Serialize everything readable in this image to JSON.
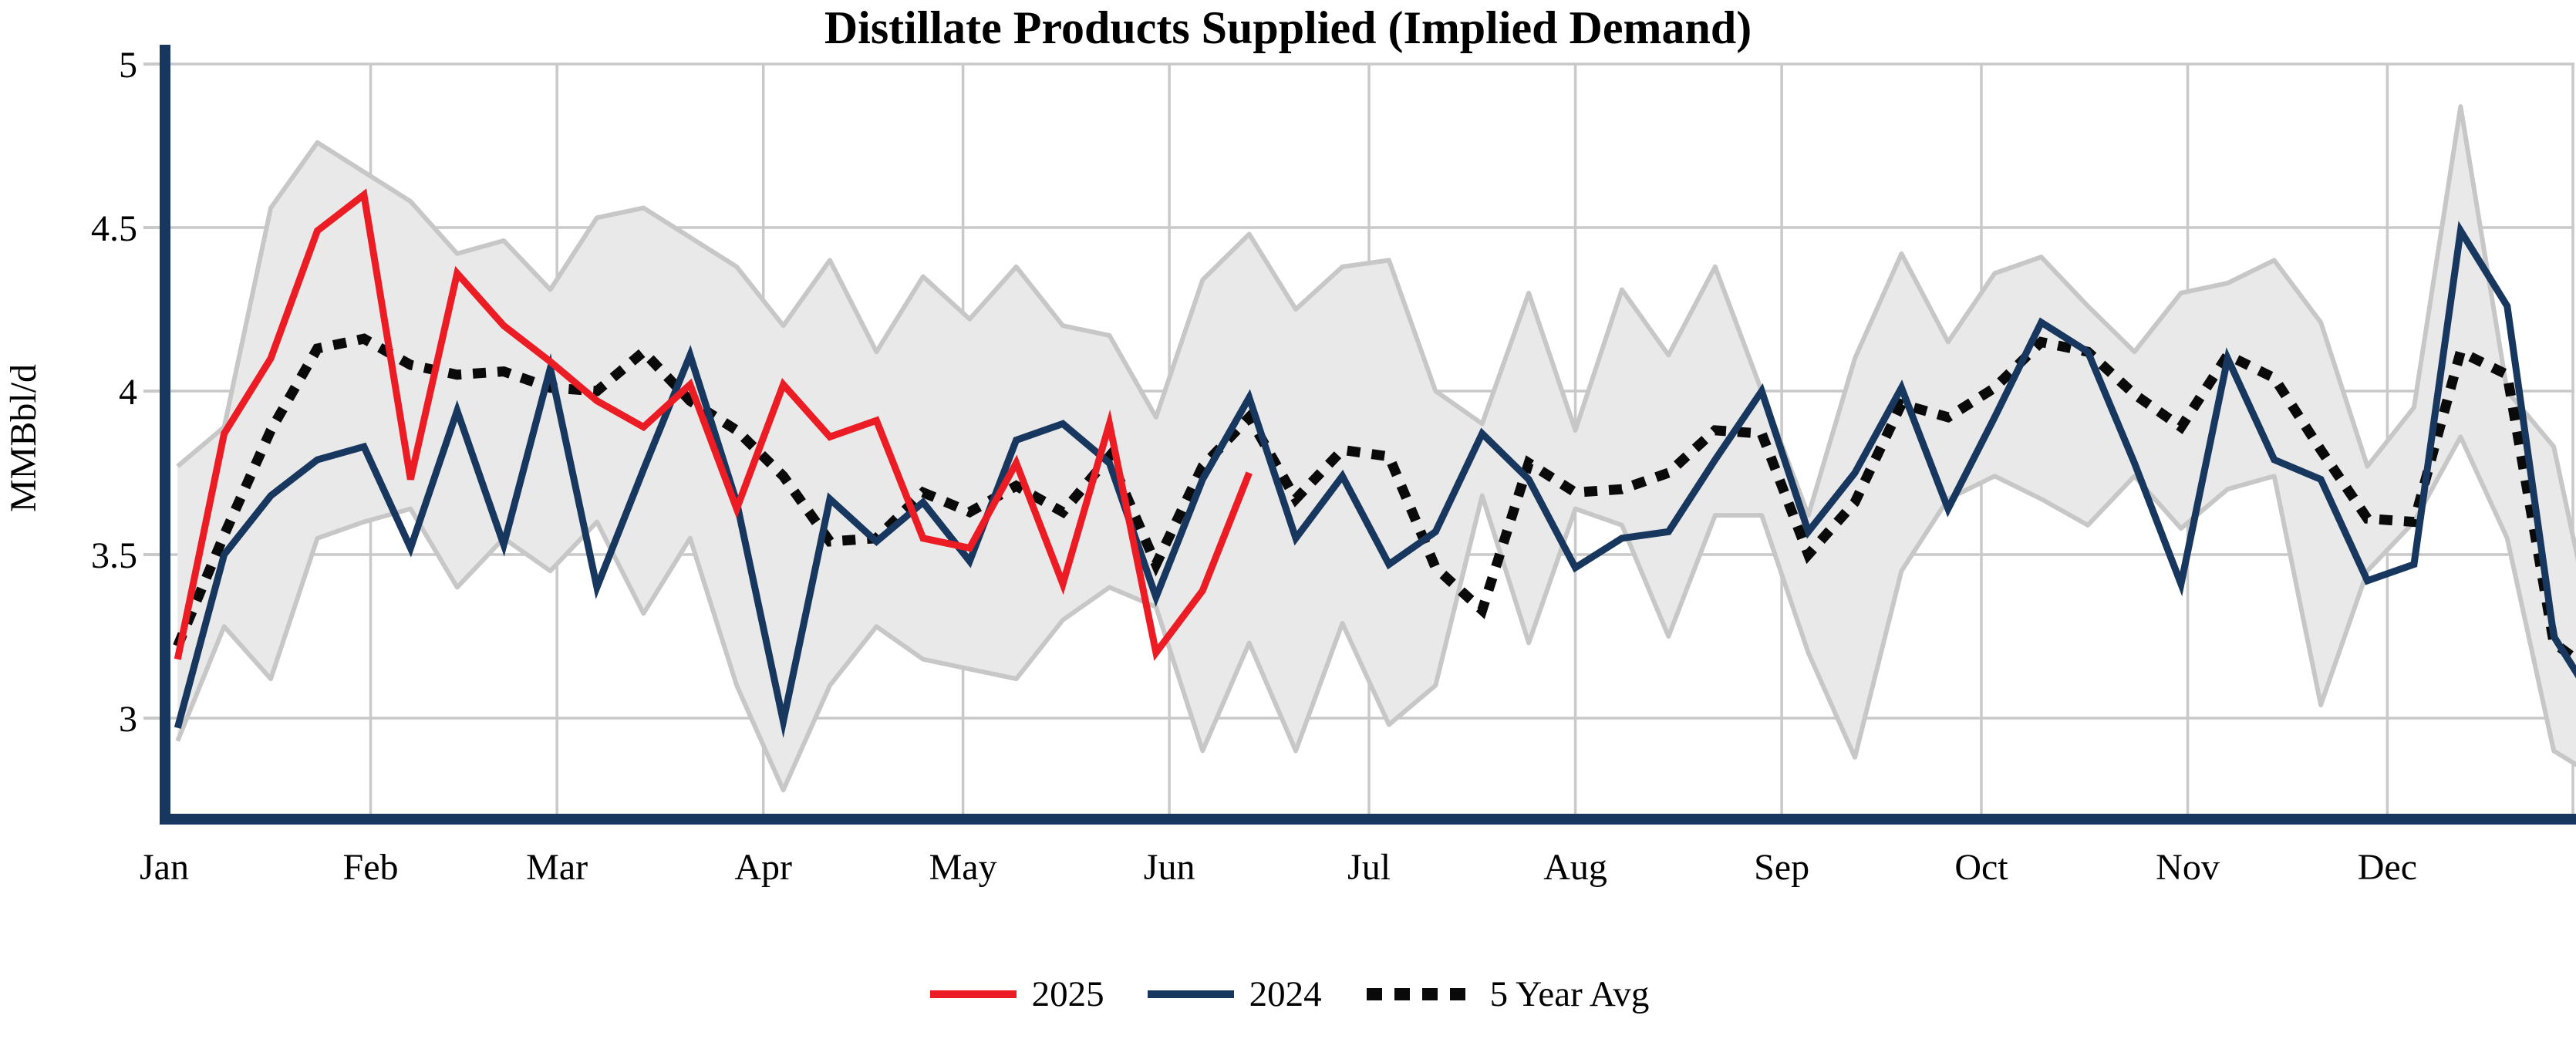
{
  "title": "Distillate Products Supplied (Implied Demand)",
  "y_axis": {
    "label": "MMBbl/d",
    "tick_labels": [
      "5",
      "4.5",
      "4",
      "3.5",
      "3"
    ],
    "tick_values": [
      5,
      4.5,
      4,
      3.5,
      3
    ]
  },
  "x_axis": {
    "months": [
      {
        "label": "Jan",
        "doy": 1
      },
      {
        "label": "Feb",
        "doy": 32
      },
      {
        "label": "Mar",
        "doy": 60
      },
      {
        "label": "Apr",
        "doy": 91
      },
      {
        "label": "May",
        "doy": 121
      },
      {
        "label": "Jun",
        "doy": 152
      },
      {
        "label": "Jul",
        "doy": 182
      },
      {
        "label": "Aug",
        "doy": 213
      },
      {
        "label": "Sep",
        "doy": 244
      },
      {
        "label": "Oct",
        "doy": 274
      },
      {
        "label": "Nov",
        "doy": 305
      },
      {
        "label": "Dec",
        "doy": 335
      }
    ]
  },
  "legend": [
    {
      "label": "2025",
      "color": "#ec1c24",
      "style": "solid"
    },
    {
      "label": "2024",
      "color": "#17375e",
      "style": "solid"
    },
    {
      "label": "5 Year Avg",
      "color": "#0a0a0a",
      "style": "dotted"
    }
  ],
  "colors": {
    "red_2025": "#ec1c24",
    "navy_2024": "#17375e",
    "avg_dotted": "#0a0a0a",
    "band_fill": "#e9e9e9",
    "band_edge": "#c7c7c7",
    "gridline": "#c9c9c9",
    "axis": "#17375e"
  },
  "chart_data": {
    "type": "line",
    "title": "Distillate Products Supplied (Implied Demand)",
    "ylabel": "MMBbl/d",
    "xlabel": "",
    "ylim": [
      2.7,
      5.05
    ],
    "yticks": [
      3,
      3.5,
      4,
      4.5,
      5
    ],
    "grid": true,
    "legend_position": "bottom",
    "x_weeks_day_of_year": [
      3,
      10,
      17,
      24,
      31,
      38,
      45,
      52,
      59,
      66,
      73,
      80,
      87,
      94,
      101,
      108,
      115,
      122,
      129,
      136,
      143,
      150,
      157,
      164,
      171,
      178,
      185,
      192,
      199,
      206,
      213,
      220,
      227,
      234,
      241,
      248,
      255,
      262,
      269,
      276,
      283,
      290,
      297,
      304,
      311,
      318,
      325,
      332,
      339,
      346,
      353,
      360,
      364
    ],
    "series": [
      {
        "name": "2025",
        "style": "solid",
        "color": "#ec1c24",
        "values": [
          3.18,
          3.87,
          4.1,
          4.49,
          4.6,
          3.73,
          4.36,
          4.2,
          4.09,
          3.97,
          3.89,
          4.02,
          3.64,
          4.02,
          3.86,
          3.91,
          3.55,
          3.52,
          3.78,
          3.41,
          3.9,
          3.2,
          3.39,
          3.75
        ]
      },
      {
        "name": "2024",
        "style": "solid",
        "color": "#17375e",
        "values": [
          2.97,
          3.5,
          3.68,
          3.79,
          3.83,
          3.52,
          3.94,
          3.53,
          4.07,
          3.4,
          3.76,
          4.11,
          3.66,
          2.99,
          3.67,
          3.54,
          3.66,
          3.48,
          3.85,
          3.9,
          3.78,
          3.37,
          3.73,
          3.98,
          3.55,
          3.74,
          3.47,
          3.57,
          3.87,
          3.73,
          3.46,
          3.55,
          3.57,
          3.79,
          4.0,
          3.57,
          3.75,
          4.01,
          3.64,
          3.92,
          4.21,
          4.12,
          3.78,
          3.41,
          4.1,
          3.79,
          3.73,
          3.42,
          3.47,
          4.49,
          4.26,
          3.25,
          3.12
        ]
      },
      {
        "name": "5 Year Avg",
        "style": "dotted",
        "color": "#0a0a0a",
        "values": [
          3.22,
          3.56,
          3.88,
          4.13,
          4.16,
          4.08,
          4.05,
          4.06,
          4.01,
          4.0,
          4.12,
          3.97,
          3.88,
          3.74,
          3.54,
          3.55,
          3.69,
          3.63,
          3.71,
          3.63,
          3.8,
          3.47,
          3.77,
          3.92,
          3.67,
          3.82,
          3.8,
          3.46,
          3.33,
          3.78,
          3.69,
          3.7,
          3.75,
          3.88,
          3.87,
          3.5,
          3.66,
          3.96,
          3.92,
          4.01,
          4.15,
          4.12,
          3.99,
          3.89,
          4.11,
          4.04,
          3.82,
          3.61,
          3.6,
          4.12,
          4.05,
          3.23,
          3.17
        ]
      }
    ],
    "band": {
      "name": "5 year min-max range",
      "fill": "#e9e9e9",
      "max": [
        3.77,
        3.89,
        4.56,
        4.76,
        4.67,
        4.58,
        4.42,
        4.46,
        4.31,
        4.53,
        4.56,
        4.47,
        4.38,
        4.2,
        4.4,
        4.12,
        4.35,
        4.22,
        4.38,
        4.2,
        4.17,
        3.92,
        4.34,
        4.48,
        4.25,
        4.38,
        4.4,
        4.0,
        3.9,
        4.3,
        3.88,
        4.31,
        4.11,
        4.38,
        4.0,
        3.62,
        4.1,
        4.42,
        4.15,
        4.36,
        4.41,
        4.26,
        4.12,
        4.3,
        4.33,
        4.4,
        4.21,
        3.77,
        3.95,
        4.87,
        4.0,
        3.83,
        3.45
      ],
      "min": [
        2.93,
        3.28,
        3.12,
        3.55,
        3.6,
        3.64,
        3.4,
        3.55,
        3.45,
        3.6,
        3.32,
        3.55,
        3.1,
        2.78,
        3.1,
        3.28,
        3.18,
        3.15,
        3.12,
        3.3,
        3.4,
        3.34,
        2.9,
        3.23,
        2.9,
        3.29,
        2.98,
        3.1,
        3.68,
        3.23,
        3.64,
        3.59,
        3.25,
        3.62,
        3.62,
        3.2,
        2.88,
        3.45,
        3.67,
        3.74,
        3.67,
        3.59,
        3.74,
        3.58,
        3.7,
        3.74,
        3.04,
        3.45,
        3.6,
        3.86,
        3.55,
        2.9,
        2.85
      ]
    }
  }
}
